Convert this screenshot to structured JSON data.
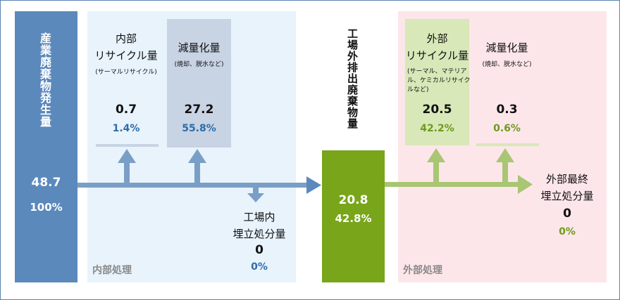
{
  "generation": {
    "label": "産業廃棄物発生量",
    "value": "48.7",
    "percent": "100%"
  },
  "internal": {
    "section_label": "内部処理",
    "recycle": {
      "title_line1": "内部",
      "title_line2": "リサイクル量",
      "note": "(サーマルリサイクル)",
      "value": "0.7",
      "percent": "1.4%"
    },
    "reduction": {
      "title": "減量化量",
      "note": "(焼却、脱水など)",
      "value": "27.2",
      "percent": "55.8%"
    },
    "landfill": {
      "title_line1": "工場内",
      "title_line2": "埋立処分量",
      "value": "0",
      "percent": "0%"
    }
  },
  "discharge": {
    "label": "工場外排出廃棄物量",
    "value": "20.8",
    "percent": "42.8%"
  },
  "external": {
    "section_label": "外部処理",
    "recycle": {
      "title_line1": "外部",
      "title_line2": "リサイクル量",
      "note_line1": "(サーマル、マテリア",
      "note_line2": "ル、ケミカルリサイク",
      "note_line3": "ルなど)",
      "value": "20.5",
      "percent": "42.2%"
    },
    "reduction": {
      "title": "減量化量",
      "note": "(焼却、脱水など)",
      "value": "0.3",
      "percent": "0.6%"
    },
    "landfill": {
      "title_line1": "外部最終",
      "title_line2": "埋立処分量",
      "value": "0",
      "percent": "0%"
    }
  },
  "colors": {
    "blue_dark": "#5b89bc",
    "blue_text": "#2e6ca8",
    "blue_light_bg": "#e8f3fc",
    "blue_box": "#c8d3e4",
    "blue_arrow": "#7a9fc6",
    "green_dark": "#78a51a",
    "green_text": "#6e9a1c",
    "pink_bg": "#fde6ea",
    "green_box": "#d8e8b8",
    "green_arrow": "#a8c673",
    "gray_label": "#8a8a8a"
  }
}
